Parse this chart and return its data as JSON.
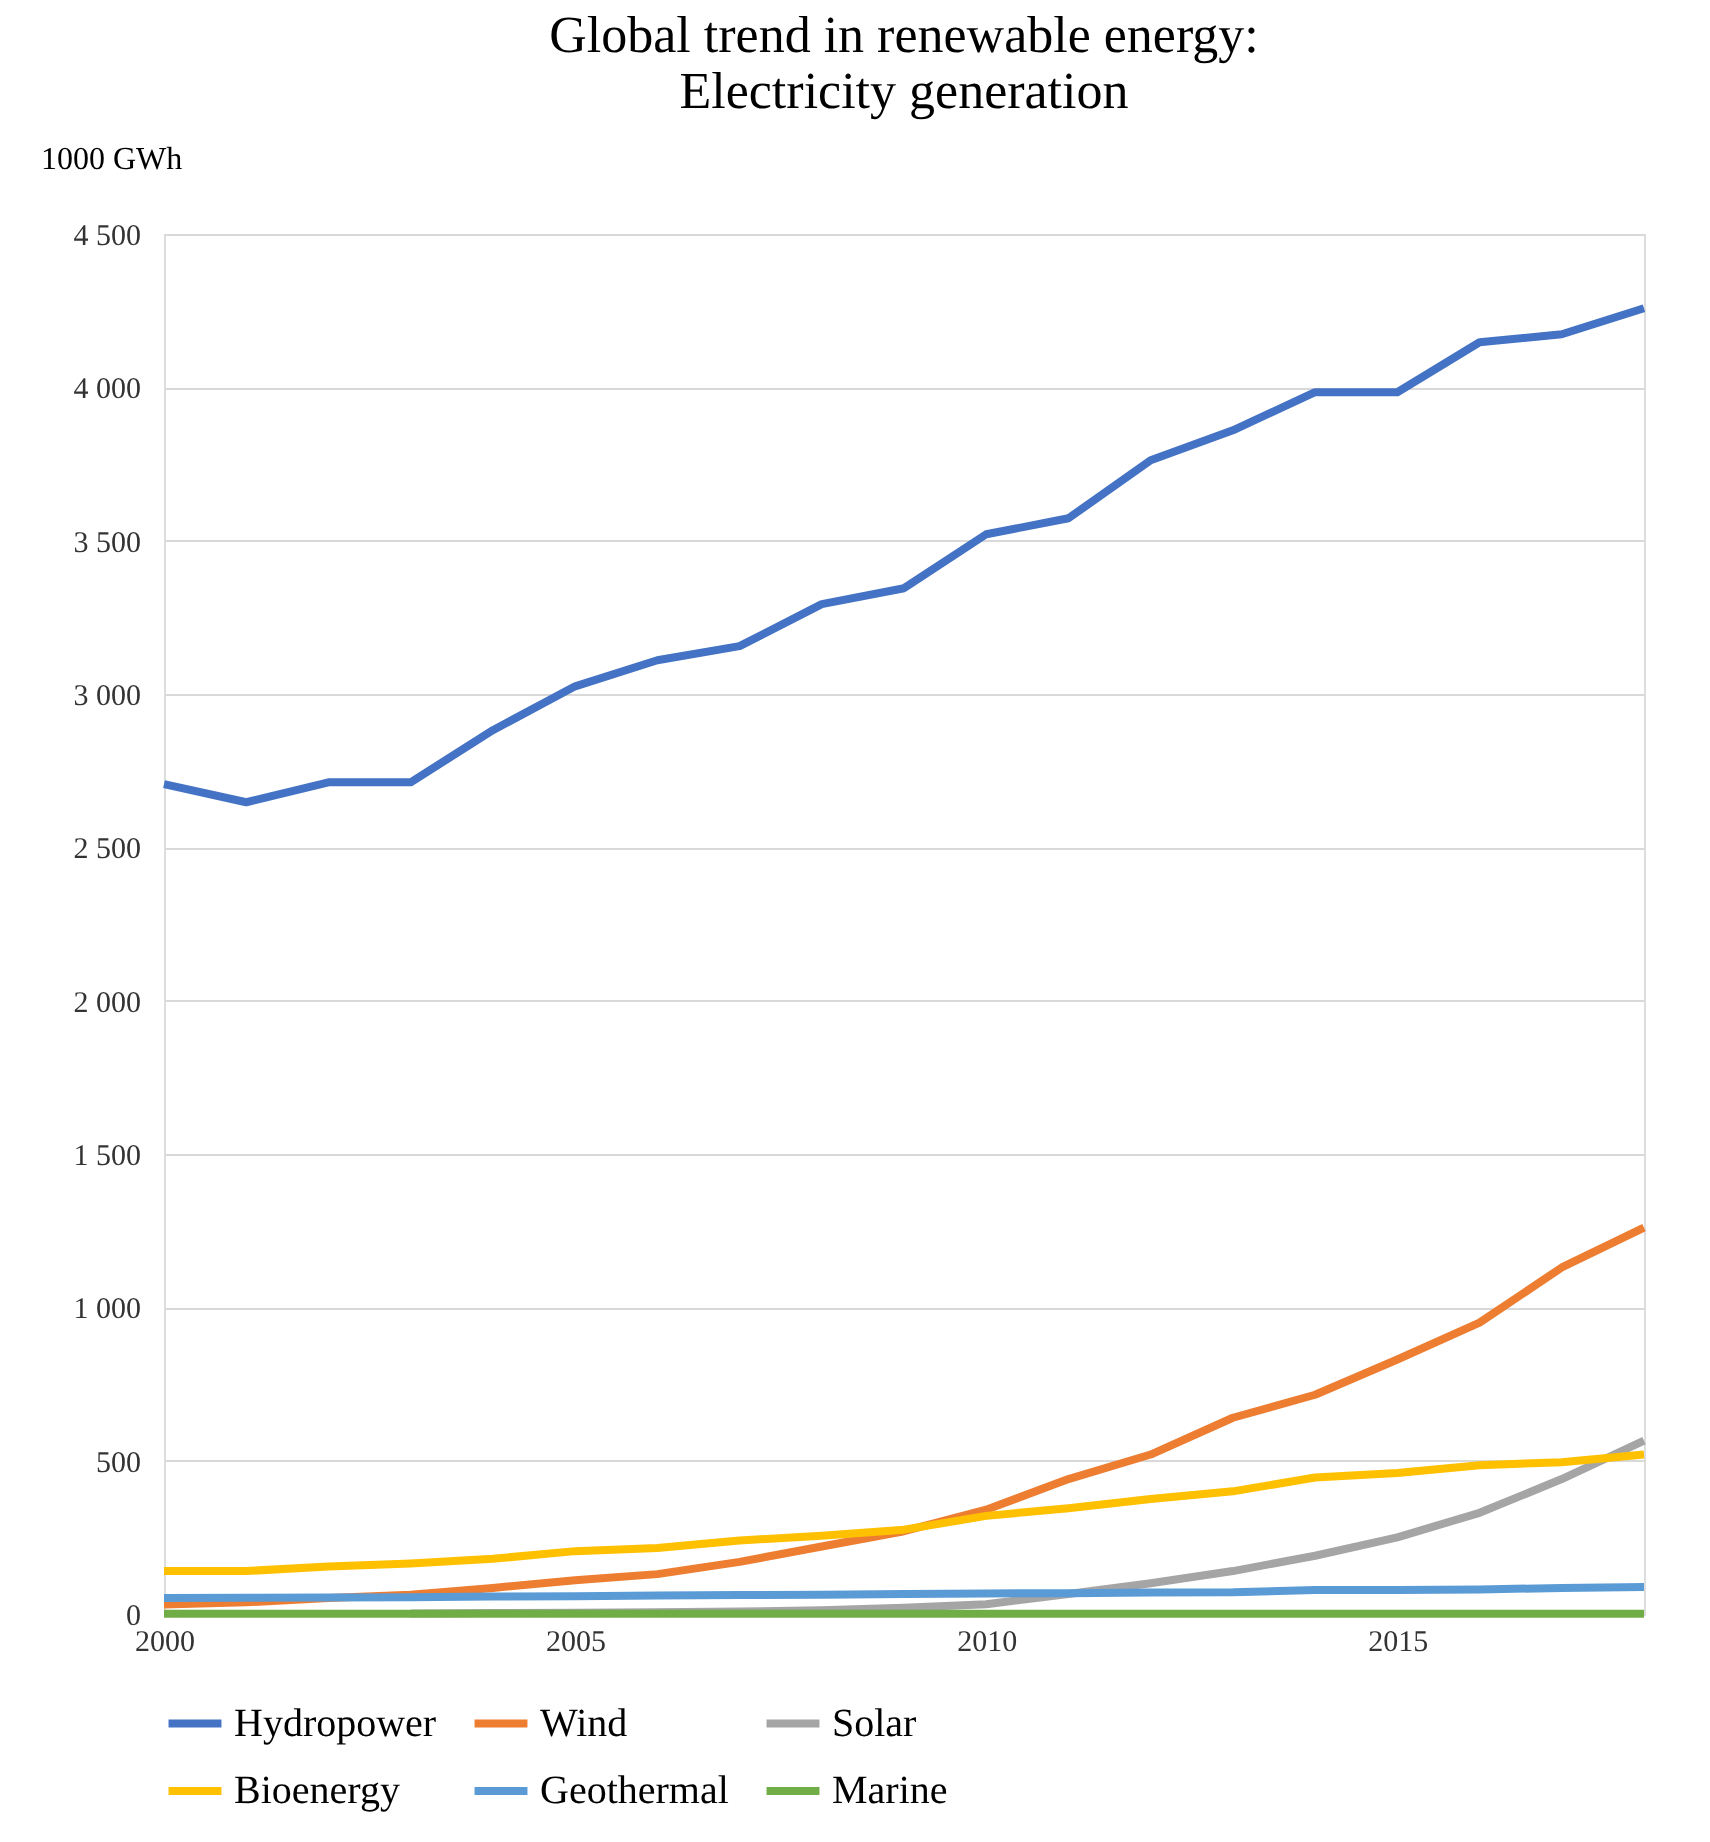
{
  "chart_data": {
    "type": "line",
    "title": "Global trend in renewable energy:\nElectricity generation",
    "ylabel": "1000 GWh",
    "x": [
      2000,
      2001,
      2002,
      2003,
      2004,
      2005,
      2006,
      2007,
      2008,
      2009,
      2010,
      2011,
      2012,
      2013,
      2014,
      2015,
      2016,
      2017,
      2018
    ],
    "series": [
      {
        "name": "Hydropower",
        "color": "#4472c4",
        "values": [
          2706,
          2647,
          2712,
          2712,
          2882,
          3025,
          3110,
          3156,
          3293,
          3345,
          3521,
          3573,
          3762,
          3860,
          3984,
          3984,
          4147,
          4173,
          4258
        ]
      },
      {
        "name": "Wind",
        "color": "#ed7d31",
        "values": [
          31,
          38,
          52,
          63,
          85,
          110,
          130,
          170,
          220,
          270,
          340,
          440,
          520,
          640,
          715,
          830,
          950,
          1130,
          1260
        ]
      },
      {
        "name": "Solar",
        "color": "#a5a5a5",
        "values": [
          null,
          null,
          null,
          2,
          3,
          4,
          6,
          8,
          12,
          20,
          32,
          65,
          100,
          140,
          190,
          250,
          330,
          440,
          565
        ]
      },
      {
        "name": "Bioenergy",
        "color": "#ffc000",
        "values": [
          140,
          140,
          155,
          165,
          180,
          205,
          215,
          240,
          255,
          275,
          320,
          345,
          375,
          400,
          445,
          460,
          485,
          495,
          520
        ]
      },
      {
        "name": "Geothermal",
        "color": "#5b9bd5",
        "values": [
          52,
          53,
          54,
          55,
          57,
          58,
          60,
          62,
          63,
          65,
          67,
          68,
          70,
          71,
          78,
          78,
          80,
          85,
          88
        ]
      },
      {
        "name": "Marine",
        "color": "#70ad47",
        "values": [
          1,
          1,
          1,
          1,
          1,
          1,
          1,
          1,
          1,
          1,
          1,
          1,
          1,
          1,
          1,
          1,
          1,
          1,
          1
        ]
      }
    ],
    "xlim": [
      2000,
      2018
    ],
    "xticks": [
      2000,
      2005,
      2010,
      2015
    ],
    "ylim": [
      0,
      4500
    ],
    "yticks": [
      0,
      500,
      {
        "value": 1000,
        "label": "1 000"
      },
      {
        "value": 1500,
        "label": "1 500"
      },
      {
        "value": 2000,
        "label": "2 000"
      },
      {
        "value": 2500,
        "label": "2 500"
      },
      {
        "value": 3000,
        "label": "3 000"
      },
      {
        "value": 3500,
        "label": "3 500"
      },
      {
        "value": 4000,
        "label": "4 000"
      },
      {
        "value": 4500,
        "label": "4 500"
      }
    ],
    "grid": "y",
    "legend": "bottom",
    "marker": "none",
    "line_style": "solid"
  }
}
